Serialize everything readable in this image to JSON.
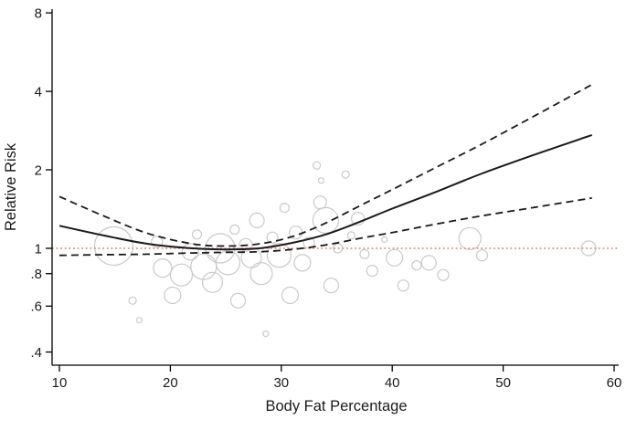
{
  "chart_data": {
    "type": "scatter",
    "title": "",
    "xlabel": "Body Fat Percentage",
    "ylabel": "Relative Risk",
    "x_ticks": [
      10,
      20,
      30,
      40,
      50,
      60
    ],
    "y_ticks": [
      0.4,
      0.6,
      0.8,
      1,
      2,
      4,
      8
    ],
    "y_tick_labels": [
      ".4",
      ".6",
      ".8",
      "1",
      "2",
      "4",
      "8"
    ],
    "xlim": [
      10,
      60
    ],
    "ylim": [
      0.4,
      8
    ],
    "y_scale": "log",
    "grid": "off",
    "legend": "none",
    "colors": {
      "curve": "#1a1a1a",
      "bubble_stroke": "#c9c9c9",
      "reference_line": "#ec8a86",
      "axis": "#000000"
    },
    "reference_line": {
      "y": 1,
      "style": "dotted"
    },
    "series": [
      {
        "name": "fitted-relative-risk",
        "style": "solid",
        "points": [
          [
            10,
            1.22
          ],
          [
            14,
            1.12
          ],
          [
            18,
            1.04
          ],
          [
            22,
            1.0
          ],
          [
            25,
            0.99
          ],
          [
            28,
            1.0
          ],
          [
            31,
            1.05
          ],
          [
            34,
            1.13
          ],
          [
            37,
            1.26
          ],
          [
            40,
            1.42
          ],
          [
            44,
            1.65
          ],
          [
            48,
            1.93
          ],
          [
            53,
            2.3
          ],
          [
            58,
            2.72
          ]
        ]
      },
      {
        "name": "upper-confidence-limit",
        "style": "dashed",
        "points": [
          [
            10,
            1.58
          ],
          [
            14,
            1.33
          ],
          [
            18,
            1.14
          ],
          [
            22,
            1.04
          ],
          [
            25,
            1.02
          ],
          [
            28,
            1.04
          ],
          [
            31,
            1.11
          ],
          [
            34,
            1.25
          ],
          [
            37,
            1.45
          ],
          [
            40,
            1.68
          ],
          [
            44,
            2.05
          ],
          [
            48,
            2.5
          ],
          [
            53,
            3.25
          ],
          [
            58,
            4.25
          ]
        ]
      },
      {
        "name": "lower-confidence-limit",
        "style": "dashed",
        "points": [
          [
            10,
            0.94
          ],
          [
            14,
            0.945
          ],
          [
            18,
            0.95
          ],
          [
            22,
            0.96
          ],
          [
            25,
            0.965
          ],
          [
            28,
            0.97
          ],
          [
            31,
            0.99
          ],
          [
            34,
            1.03
          ],
          [
            37,
            1.09
          ],
          [
            40,
            1.15
          ],
          [
            44,
            1.24
          ],
          [
            48,
            1.33
          ],
          [
            53,
            1.44
          ],
          [
            58,
            1.56
          ]
        ]
      }
    ],
    "bubbles": {
      "note": "study estimates; radius proportional to study weight (px)",
      "points": [
        {
          "x": 14.9,
          "y": 1.02,
          "r": 21
        },
        {
          "x": 16.6,
          "y": 0.63,
          "r": 4
        },
        {
          "x": 17.2,
          "y": 0.53,
          "r": 3
        },
        {
          "x": 18.8,
          "y": 1.06,
          "r": 6
        },
        {
          "x": 19.3,
          "y": 0.84,
          "r": 10
        },
        {
          "x": 20.2,
          "y": 0.66,
          "r": 9
        },
        {
          "x": 21.0,
          "y": 0.79,
          "r": 12
        },
        {
          "x": 21.8,
          "y": 0.97,
          "r": 9
        },
        {
          "x": 22.4,
          "y": 1.13,
          "r": 5
        },
        {
          "x": 23.0,
          "y": 0.85,
          "r": 14
        },
        {
          "x": 23.8,
          "y": 0.74,
          "r": 11
        },
        {
          "x": 24.5,
          "y": 1.0,
          "r": 16
        },
        {
          "x": 25.2,
          "y": 0.88,
          "r": 13
        },
        {
          "x": 25.8,
          "y": 1.18,
          "r": 5
        },
        {
          "x": 26.1,
          "y": 0.63,
          "r": 8
        },
        {
          "x": 26.8,
          "y": 1.03,
          "r": 7
        },
        {
          "x": 27.3,
          "y": 0.92,
          "r": 11
        },
        {
          "x": 27.8,
          "y": 1.28,
          "r": 8
        },
        {
          "x": 28.2,
          "y": 0.8,
          "r": 12
        },
        {
          "x": 28.6,
          "y": 0.47,
          "r": 3
        },
        {
          "x": 29.2,
          "y": 1.1,
          "r": 6
        },
        {
          "x": 29.8,
          "y": 0.94,
          "r": 13
        },
        {
          "x": 30.3,
          "y": 1.43,
          "r": 5
        },
        {
          "x": 30.8,
          "y": 0.66,
          "r": 9
        },
        {
          "x": 31.3,
          "y": 1.15,
          "r": 7
        },
        {
          "x": 31.9,
          "y": 0.88,
          "r": 9
        },
        {
          "x": 32.5,
          "y": 1.05,
          "r": 6
        },
        {
          "x": 33.2,
          "y": 2.08,
          "r": 4
        },
        {
          "x": 33.6,
          "y": 1.82,
          "r": 3
        },
        {
          "x": 33.5,
          "y": 1.5,
          "r": 7
        },
        {
          "x": 34.0,
          "y": 1.28,
          "r": 14
        },
        {
          "x": 34.5,
          "y": 0.72,
          "r": 8
        },
        {
          "x": 35.1,
          "y": 1.0,
          "r": 5
        },
        {
          "x": 35.8,
          "y": 1.92,
          "r": 4
        },
        {
          "x": 36.3,
          "y": 1.12,
          "r": 4
        },
        {
          "x": 36.9,
          "y": 1.3,
          "r": 7
        },
        {
          "x": 37.5,
          "y": 0.95,
          "r": 5
        },
        {
          "x": 38.2,
          "y": 0.82,
          "r": 6
        },
        {
          "x": 39.3,
          "y": 1.08,
          "r": 3
        },
        {
          "x": 40.2,
          "y": 0.92,
          "r": 9
        },
        {
          "x": 41.0,
          "y": 0.72,
          "r": 6
        },
        {
          "x": 42.2,
          "y": 0.86,
          "r": 5
        },
        {
          "x": 43.3,
          "y": 0.88,
          "r": 8
        },
        {
          "x": 44.6,
          "y": 0.79,
          "r": 6
        },
        {
          "x": 47.0,
          "y": 1.09,
          "r": 12
        },
        {
          "x": 48.1,
          "y": 0.94,
          "r": 6
        },
        {
          "x": 57.7,
          "y": 1.0,
          "r": 8
        }
      ]
    }
  }
}
